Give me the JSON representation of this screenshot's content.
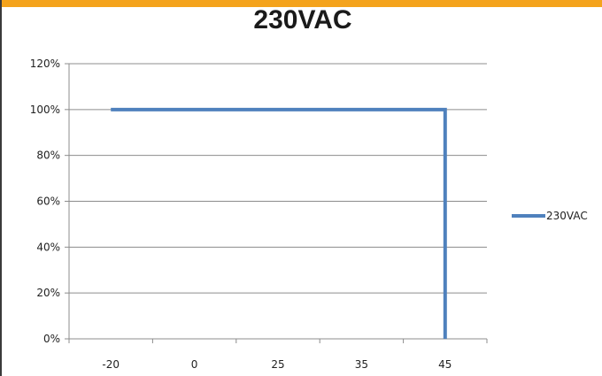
{
  "chart_data": {
    "type": "line",
    "title": "230VAC",
    "categories": [
      "-20",
      "0",
      "25",
      "35",
      "45"
    ],
    "yticks": [
      "0%",
      "20%",
      "40%",
      "60%",
      "80%",
      "100%",
      "120%"
    ],
    "ylim": [
      0,
      120
    ],
    "grid": true,
    "legend_position": "right",
    "series": [
      {
        "name": "230VAC",
        "color": "#4f81bd",
        "points": [
          {
            "x": "-20",
            "y": 100
          },
          {
            "x": "45",
            "y": 100
          },
          {
            "x": "45",
            "y": 0
          }
        ]
      }
    ]
  }
}
